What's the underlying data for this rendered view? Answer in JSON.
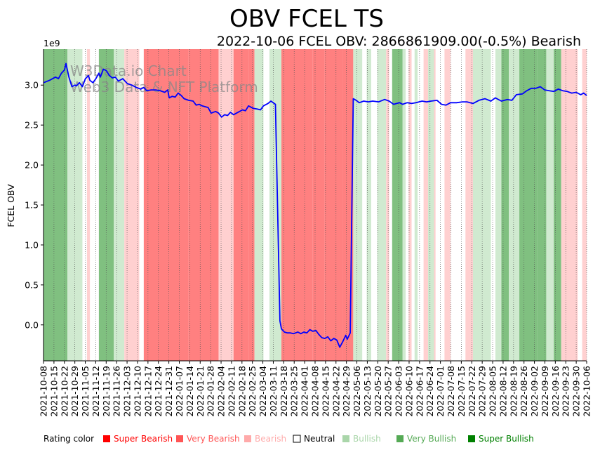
{
  "chart_data": {
    "type": "line",
    "title": "OBV FCEL TS",
    "subtitle": "2022-10-06 FCEL OBV: 2866861909.00(-0.5%) Bearish",
    "ylabel": "FCEL OBV",
    "y_offset_label": "1e9",
    "ylim": [
      -0.45,
      3.45
    ],
    "yticks": [
      {
        "value": 0.0,
        "label": "0.0"
      },
      {
        "value": 0.5,
        "label": "0.5"
      },
      {
        "value": 1.0,
        "label": "1.0"
      },
      {
        "value": 1.5,
        "label": "1.5"
      },
      {
        "value": 2.0,
        "label": "2.0"
      },
      {
        "value": 2.5,
        "label": "2.5"
      },
      {
        "value": 3.0,
        "label": "3.0"
      }
    ],
    "xlim": [
      0,
      363
    ],
    "xticks": [
      "2021-10-08",
      "2021-10-15",
      "2021-10-22",
      "2021-10-29",
      "2021-11-05",
      "2021-11-12",
      "2021-11-19",
      "2021-11-26",
      "2021-12-03",
      "2021-12-10",
      "2021-12-17",
      "2021-12-24",
      "2021-12-31",
      "2022-01-07",
      "2022-01-14",
      "2022-01-21",
      "2022-01-28",
      "2022-02-04",
      "2022-02-11",
      "2022-02-18",
      "2022-02-25",
      "2022-03-04",
      "2022-03-11",
      "2022-03-18",
      "2022-03-25",
      "2022-04-01",
      "2022-04-08",
      "2022-04-15",
      "2022-04-22",
      "2022-04-29",
      "2022-05-06",
      "2022-05-13",
      "2022-05-20",
      "2022-05-27",
      "2022-06-03",
      "2022-06-10",
      "2022-06-17",
      "2022-06-24",
      "2022-07-01",
      "2022-07-08",
      "2022-07-15",
      "2022-07-22",
      "2022-07-29",
      "2022-08-05",
      "2022-08-12",
      "2022-08-19",
      "2022-08-26",
      "2022-09-02",
      "2022-09-09",
      "2022-09-16",
      "2022-09-23",
      "2022-09-30",
      "2022-10-06"
    ],
    "series": [
      {
        "name": "FCEL OBV",
        "color": "#0000ff",
        "points": [
          [
            0,
            3.03
          ],
          [
            4,
            3.06
          ],
          [
            8,
            3.1
          ],
          [
            10,
            3.08
          ],
          [
            12,
            3.15
          ],
          [
            14,
            3.19
          ],
          [
            15,
            3.27
          ],
          [
            17,
            3.1
          ],
          [
            19,
            2.98
          ],
          [
            21,
            3.0
          ],
          [
            22,
            2.99
          ],
          [
            24,
            3.03
          ],
          [
            26,
            2.98
          ],
          [
            28,
            3.08
          ],
          [
            30,
            3.12
          ],
          [
            31,
            3.06
          ],
          [
            33,
            3.03
          ],
          [
            35,
            3.08
          ],
          [
            37,
            3.15
          ],
          [
            38,
            3.1
          ],
          [
            40,
            3.2
          ],
          [
            42,
            3.18
          ],
          [
            44,
            3.12
          ],
          [
            46,
            3.09
          ],
          [
            48,
            3.1
          ],
          [
            50,
            3.05
          ],
          [
            53,
            3.08
          ],
          [
            56,
            3.02
          ],
          [
            59,
            3.0
          ],
          [
            62,
            2.97
          ],
          [
            65,
            2.95
          ],
          [
            67,
            2.97
          ],
          [
            69,
            2.93
          ],
          [
            72,
            2.94
          ],
          [
            75,
            2.94
          ],
          [
            78,
            2.93
          ],
          [
            81,
            2.91
          ],
          [
            83,
            2.94
          ],
          [
            84,
            2.84
          ],
          [
            86,
            2.86
          ],
          [
            88,
            2.85
          ],
          [
            90,
            2.9
          ],
          [
            92,
            2.87
          ],
          [
            94,
            2.83
          ],
          [
            97,
            2.81
          ],
          [
            100,
            2.8
          ],
          [
            102,
            2.75
          ],
          [
            104,
            2.76
          ],
          [
            106,
            2.74
          ],
          [
            108,
            2.73
          ],
          [
            110,
            2.72
          ],
          [
            112,
            2.65
          ],
          [
            115,
            2.67
          ],
          [
            117,
            2.65
          ],
          [
            119,
            2.6
          ],
          [
            121,
            2.63
          ],
          [
            123,
            2.62
          ],
          [
            125,
            2.66
          ],
          [
            127,
            2.63
          ],
          [
            130,
            2.66
          ],
          [
            133,
            2.69
          ],
          [
            135,
            2.68
          ],
          [
            137,
            2.74
          ],
          [
            140,
            2.71
          ],
          [
            143,
            2.7
          ],
          [
            145,
            2.69
          ],
          [
            147,
            2.74
          ],
          [
            150,
            2.77
          ],
          [
            152,
            2.8
          ],
          [
            155,
            2.76
          ],
          [
            158,
            0.05
          ],
          [
            159,
            -0.05
          ],
          [
            161,
            -0.09
          ],
          [
            163,
            -0.1
          ],
          [
            165,
            -0.1
          ],
          [
            167,
            -0.11
          ],
          [
            170,
            -0.09
          ],
          [
            172,
            -0.11
          ],
          [
            174,
            -0.09
          ],
          [
            176,
            -0.1
          ],
          [
            178,
            -0.06
          ],
          [
            180,
            -0.08
          ],
          [
            182,
            -0.07
          ],
          [
            184,
            -0.12
          ],
          [
            186,
            -0.16
          ],
          [
            188,
            -0.17
          ],
          [
            190,
            -0.15
          ],
          [
            192,
            -0.2
          ],
          [
            194,
            -0.17
          ],
          [
            196,
            -0.19
          ],
          [
            198,
            -0.28
          ],
          [
            200,
            -0.21
          ],
          [
            202,
            -0.13
          ],
          [
            203,
            -0.18
          ],
          [
            205,
            -0.1
          ],
          [
            207,
            2.83
          ],
          [
            209,
            2.81
          ],
          [
            211,
            2.78
          ],
          [
            214,
            2.8
          ],
          [
            217,
            2.79
          ],
          [
            220,
            2.8
          ],
          [
            224,
            2.79
          ],
          [
            228,
            2.82
          ],
          [
            231,
            2.8
          ],
          [
            234,
            2.76
          ],
          [
            236,
            2.77
          ],
          [
            238,
            2.78
          ],
          [
            240,
            2.76
          ],
          [
            243,
            2.78
          ],
          [
            246,
            2.77
          ],
          [
            249,
            2.78
          ],
          [
            253,
            2.8
          ],
          [
            256,
            2.79
          ],
          [
            259,
            2.8
          ],
          [
            263,
            2.81
          ],
          [
            266,
            2.76
          ],
          [
            269,
            2.75
          ],
          [
            272,
            2.78
          ],
          [
            276,
            2.78
          ],
          [
            280,
            2.79
          ],
          [
            283,
            2.79
          ],
          [
            287,
            2.77
          ],
          [
            291,
            2.81
          ],
          [
            295,
            2.83
          ],
          [
            299,
            2.8
          ],
          [
            302,
            2.84
          ],
          [
            306,
            2.8
          ],
          [
            310,
            2.82
          ],
          [
            313,
            2.81
          ],
          [
            316,
            2.88
          ],
          [
            320,
            2.89
          ],
          [
            323,
            2.93
          ],
          [
            326,
            2.96
          ],
          [
            329,
            2.96
          ],
          [
            332,
            2.98
          ],
          [
            335,
            2.94
          ],
          [
            338,
            2.93
          ],
          [
            341,
            2.92
          ],
          [
            344,
            2.95
          ],
          [
            347,
            2.93
          ],
          [
            350,
            2.92
          ],
          [
            353,
            2.9
          ],
          [
            356,
            2.91
          ],
          [
            359,
            2.88
          ],
          [
            361,
            2.9
          ],
          [
            363,
            2.87
          ]
        ]
      }
    ],
    "rating_bands": [
      {
        "from": 0,
        "to": 16,
        "rating": "Very Bullish"
      },
      {
        "from": 16,
        "to": 26,
        "rating": "Bullish"
      },
      {
        "from": 29,
        "to": 31,
        "rating": "Bearish"
      },
      {
        "from": 37,
        "to": 47,
        "rating": "Very Bullish"
      },
      {
        "from": 47,
        "to": 54,
        "rating": "Bullish"
      },
      {
        "from": 54,
        "to": 64,
        "rating": "Bearish"
      },
      {
        "from": 67,
        "to": 87,
        "rating": "Very Bearish"
      },
      {
        "from": 87,
        "to": 97,
        "rating": "Very Bearish"
      },
      {
        "from": 97,
        "to": 117,
        "rating": "Very Bearish"
      },
      {
        "from": 117,
        "to": 127,
        "rating": "Bearish"
      },
      {
        "from": 127,
        "to": 137,
        "rating": "Very Bearish"
      },
      {
        "from": 137,
        "to": 141,
        "rating": "Very Bearish"
      },
      {
        "from": 141,
        "to": 147,
        "rating": "Bullish"
      },
      {
        "from": 151,
        "to": 159,
        "rating": "Bullish"
      },
      {
        "from": 159,
        "to": 180,
        "rating": "Very Bearish"
      },
      {
        "from": 180,
        "to": 188,
        "rating": "Very Bearish"
      },
      {
        "from": 188,
        "to": 200,
        "rating": "Very Bearish"
      },
      {
        "from": 200,
        "to": 207,
        "rating": "Very Bearish"
      },
      {
        "from": 207,
        "to": 213,
        "rating": "Bullish"
      },
      {
        "from": 216,
        "to": 219,
        "rating": "Bullish"
      },
      {
        "from": 223,
        "to": 229,
        "rating": "Bullish"
      },
      {
        "from": 229,
        "to": 231,
        "rating": "Bearish"
      },
      {
        "from": 233,
        "to": 240,
        "rating": "Very Bullish"
      },
      {
        "from": 240,
        "to": 242,
        "rating": "Bullish"
      },
      {
        "from": 244,
        "to": 246,
        "rating": "Bearish"
      },
      {
        "from": 248,
        "to": 250,
        "rating": "Bullish"
      },
      {
        "from": 254,
        "to": 257,
        "rating": "Bearish"
      },
      {
        "from": 257,
        "to": 261,
        "rating": "Bullish"
      },
      {
        "from": 261,
        "to": 262,
        "rating": "Bearish"
      },
      {
        "from": 268,
        "to": 272,
        "rating": "Bearish"
      },
      {
        "from": 282,
        "to": 287,
        "rating": "Bearish"
      },
      {
        "from": 287,
        "to": 299,
        "rating": "Bullish"
      },
      {
        "from": 302,
        "to": 306,
        "rating": "Bullish"
      },
      {
        "from": 306,
        "to": 311,
        "rating": "Very Bullish"
      },
      {
        "from": 311,
        "to": 318,
        "rating": "Bullish"
      },
      {
        "from": 318,
        "to": 330,
        "rating": "Very Bullish"
      },
      {
        "from": 330,
        "to": 336,
        "rating": "Very Bullish"
      },
      {
        "from": 336,
        "to": 341,
        "rating": "Bullish"
      },
      {
        "from": 341,
        "to": 346,
        "rating": "Very Bullish"
      },
      {
        "from": 346,
        "to": 357,
        "rating": "Bearish"
      },
      {
        "from": 360,
        "to": 363,
        "rating": "Bearish"
      }
    ],
    "legend": {
      "label": "Rating color",
      "entries": [
        {
          "name": "Super Bearish",
          "color": "#ff0000"
        },
        {
          "name": "Very Bearish",
          "color": "#ff5555"
        },
        {
          "name": "Bearish",
          "color": "#ffaaaa"
        },
        {
          "name": "Neutral",
          "color": "#000000"
        },
        {
          "name": "Bullish",
          "color": "#aad6aa"
        },
        {
          "name": "Very Bullish",
          "color": "#55aa55"
        },
        {
          "name": "Super Bullish",
          "color": "#008000"
        }
      ]
    },
    "band_colors": {
      "Super Bearish": "#ff0000",
      "Very Bearish": "#ff8080",
      "Bearish": "#ffd0d0",
      "Neutral": "#ffffff",
      "Bullish": "#d0ead0",
      "Very Bullish": "#80c080",
      "Super Bullish": "#40a040"
    },
    "watermark": [
      "W3Data.io Chart",
      "Web3 Data & NFT Platform"
    ]
  }
}
